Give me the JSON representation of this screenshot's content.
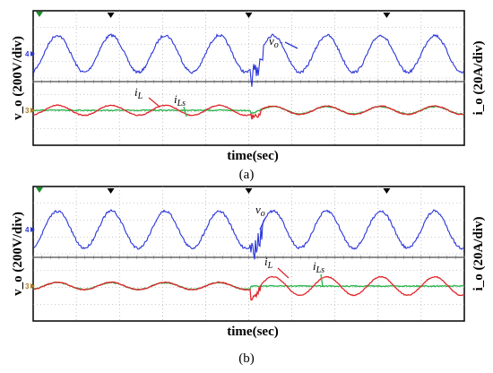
{
  "chart_data": [
    {
      "type": "line",
      "panel": "a",
      "caption": "(a)",
      "xlabel": "time(sec)",
      "ylabel_left": "v_o (200V/div)",
      "ylabel_right": "i_o (20A/div)",
      "channel_markers": [
        "4",
        "3"
      ],
      "annotations": [
        "v_o",
        "i_L",
        "i_Ls"
      ],
      "colors": {
        "v_o": "#2b35d8",
        "i_L": "#e0262b",
        "i_Ls": "#27b34a"
      },
      "series": [
        {
          "name": "v_o",
          "cycles_before_event": 4.0,
          "cycles_after_event": 3.5,
          "amplitude_div": 1.1,
          "event": "transient at mid-screen"
        },
        {
          "name": "i_L",
          "amplitude_div_before": 0.3,
          "amplitude_div_after": 0.25
        },
        {
          "name": "i_Ls",
          "amplitude_div_before": 0.0,
          "amplitude_div_after": 0.22
        }
      ]
    },
    {
      "type": "line",
      "panel": "b",
      "caption": "(b)",
      "xlabel": "time(sec)",
      "ylabel_left": "v_o (200V/div)",
      "ylabel_right": "i_o (20A/div)",
      "channel_markers": [
        "4",
        "3"
      ],
      "annotations": [
        "v_o",
        "i_L",
        "i_Ls"
      ],
      "colors": {
        "v_o": "#2b35d8",
        "i_L": "#e0262b",
        "i_Ls": "#27b34a"
      },
      "series": [
        {
          "name": "v_o",
          "cycles_before_event": 4.0,
          "cycles_after_event": 3.5,
          "amplitude_div": 1.1,
          "event": "transient at mid-screen"
        },
        {
          "name": "i_L",
          "amplitude_div_before": 0.22,
          "amplitude_div_after": 0.55
        },
        {
          "name": "i_Ls",
          "amplitude_div_before": 0.2,
          "amplitude_div_after": 0.0
        }
      ]
    }
  ]
}
